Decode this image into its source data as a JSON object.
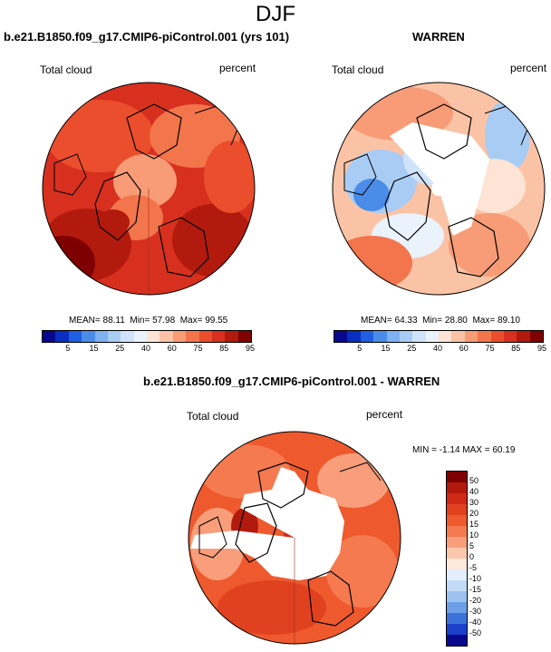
{
  "title": "DJF",
  "chart_data": [
    {
      "type": "heatmap",
      "title": "b.e21.B1850.f09_g17.CMIP6-piControl.001 (yrs 101)",
      "variable": "Total cloud",
      "units": "percent",
      "projection": "polar stereographic (north pole)",
      "stats": {
        "mean_label": "MEAN=",
        "mean": "88.11",
        "min_label": "Min=",
        "min": "57.98",
        "max_label": "Max=",
        "max": "99.55"
      },
      "levels": [
        "5",
        "15",
        "25",
        "40",
        "60",
        "75",
        "85",
        "95"
      ],
      "colors": [
        "#08088c",
        "#0a2fc0",
        "#1f5fe0",
        "#4a8ce8",
        "#7fb0f0",
        "#a9ccf5",
        "#cfe3fa",
        "#eaf2fc",
        "#fde4d4",
        "#fbc3a5",
        "#f79c76",
        "#f3754b",
        "#eb4e2c",
        "#d7301f",
        "#b31a0e",
        "#7f0000"
      ]
    },
    {
      "type": "heatmap",
      "title": "WARREN",
      "variable": "Total cloud",
      "units": "percent",
      "projection": "polar stereographic (north pole)",
      "stats": {
        "mean_label": "MEAN=",
        "mean": "64.33",
        "min_label": "Min=",
        "min": "28.80",
        "max_label": "Max=",
        "max": "89.10"
      },
      "levels": [
        "5",
        "15",
        "25",
        "40",
        "60",
        "75",
        "85",
        "95"
      ],
      "colors": [
        "#08088c",
        "#0a2fc0",
        "#1f5fe0",
        "#4a8ce8",
        "#7fb0f0",
        "#a9ccf5",
        "#cfe3fa",
        "#eaf2fc",
        "#fde4d4",
        "#fbc3a5",
        "#f79c76",
        "#f3754b",
        "#eb4e2c",
        "#d7301f",
        "#b31a0e",
        "#7f0000"
      ]
    },
    {
      "type": "heatmap",
      "title": "b.e21.B1850.f09_g17.CMIP6-piControl.001 - WARREN",
      "variable": "Total cloud",
      "units": "percent",
      "projection": "polar stereographic (north pole)",
      "stats_text": "MIN = -1.14 MAX = 60.19",
      "levels": [
        "50",
        "40",
        "30",
        "20",
        "15",
        "10",
        "5",
        "0",
        "-5",
        "-10",
        "-15",
        "-20",
        "-30",
        "-40",
        "-50"
      ],
      "colors": [
        "#7f0000",
        "#b31a0e",
        "#cf2a18",
        "#e0411f",
        "#ee5a2e",
        "#f57a4f",
        "#f89e7b",
        "#fbc7ad",
        "#fde8dc",
        "#e2eefb",
        "#c3dbf6",
        "#9dc2f0",
        "#6d9fe6",
        "#3d71da",
        "#1c40c8",
        "#08088c"
      ]
    }
  ]
}
